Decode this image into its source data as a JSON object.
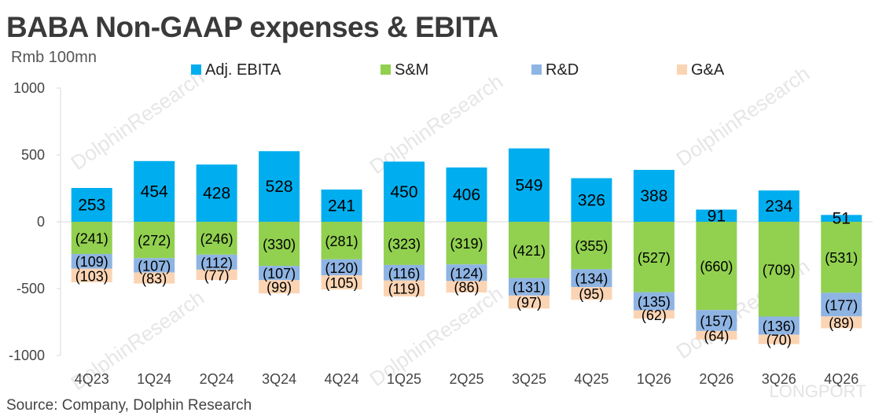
{
  "title": "BABA Non-GAAP expenses & EBITA",
  "unit": "Rmb 100mn",
  "source": "Source: Company, Dolphin Research",
  "watermarks": {
    "primary": "DolphinResearch",
    "corner": "LONGPORT"
  },
  "colors": {
    "ebita": "#00aeef",
    "sm": "#92d050",
    "rd": "#8eb4e3",
    "ga": "#fbd4b4",
    "axis": "#d9d9d9",
    "text": "#000000",
    "tick": "#444444"
  },
  "chart_data": {
    "type": "bar",
    "stacked": true,
    "categories": [
      "4Q23",
      "1Q24",
      "2Q24",
      "3Q24",
      "4Q24",
      "1Q25",
      "2Q25",
      "3Q25",
      "4Q25",
      "1Q26",
      "2Q26",
      "3Q26",
      "4Q26"
    ],
    "series": [
      {
        "key": "ebita",
        "name": "Adj. EBITA",
        "values": [
          253,
          454,
          428,
          528,
          241,
          450,
          406,
          549,
          326,
          388,
          91,
          234,
          51
        ],
        "labels": [
          "253",
          "454",
          "428",
          "528",
          "241",
          "450",
          "406",
          "549",
          "326",
          "388",
          "91",
          "234",
          "51"
        ]
      },
      {
        "key": "sm",
        "name": "S&M",
        "values": [
          -241,
          -272,
          -246,
          -330,
          -281,
          -323,
          -319,
          -421,
          -355,
          -527,
          -660,
          -709,
          -531
        ],
        "labels": [
          "(241)",
          "(272)",
          "(246)",
          "(330)",
          "(281)",
          "(323)",
          "(319)",
          "(421)",
          "(355)",
          "(527)",
          "(660)",
          "(709)",
          "(531)"
        ]
      },
      {
        "key": "rd",
        "name": "R&D",
        "values": [
          -109,
          -107,
          -112,
          -107,
          -120,
          -116,
          -124,
          -131,
          -134,
          -135,
          -157,
          -136,
          -177
        ],
        "labels": [
          "(109)",
          "(107)",
          "(112)",
          "(107)",
          "(120)",
          "(116)",
          "(124)",
          "(131)",
          "(134)",
          "(135)",
          "(157)",
          "(136)",
          "(177)"
        ]
      },
      {
        "key": "ga",
        "name": "G&A",
        "values": [
          -103,
          -83,
          -77,
          -99,
          -105,
          -119,
          -86,
          -97,
          -95,
          -62,
          -64,
          -70,
          -89
        ],
        "labels": [
          "(103)",
          "(83)",
          "(77)",
          "(99)",
          "(105)",
          "(119)",
          "(86)",
          "(97)",
          "(95)",
          "(62)",
          "(64)",
          "(70)",
          "(89)"
        ]
      }
    ],
    "ylim": [
      -1000,
      1000
    ],
    "yticks": [
      1000,
      500,
      0,
      -500,
      -1000
    ],
    "ytick_labels": [
      "1000",
      "500",
      "0",
      "-500",
      "-1000"
    ],
    "legend_position": "top",
    "grid": false
  }
}
